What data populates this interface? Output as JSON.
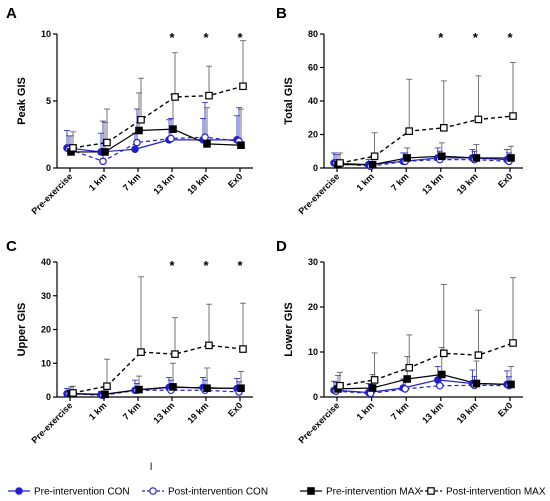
{
  "chart_data": [
    {
      "panel": "A",
      "type": "line",
      "ylabel": "Peak GIS",
      "ylim": [
        0,
        10
      ],
      "yticks": [
        0,
        5,
        10
      ],
      "categories": [
        "Pre-exercise",
        "1 km",
        "7 km",
        "13 km",
        "19 km",
        "Ex0"
      ],
      "significance": [
        "",
        "",
        "",
        "*",
        "*",
        "*"
      ],
      "series": [
        {
          "name": "Pre-intervention CON",
          "values": [
            1.5,
            1.2,
            1.4,
            2.1,
            2.1,
            2.1
          ],
          "err_upper": [
            1.3,
            1.4,
            1.2,
            1.5,
            1.6,
            1.8
          ]
        },
        {
          "name": "Post-intervention CON",
          "values": [
            1.4,
            0.5,
            1.9,
            2.2,
            2.3,
            2.0
          ],
          "err_upper": [
            1.0,
            3.0,
            2.5,
            1.5,
            2.6,
            2.5
          ]
        },
        {
          "name": "Pre-intervention MAX",
          "values": [
            1.2,
            1.2,
            2.8,
            2.9,
            1.8,
            1.7
          ],
          "err_upper": [
            1.2,
            2.2,
            2.8,
            2.6,
            2.7,
            2.7
          ]
        },
        {
          "name": "Post-intervention MAX",
          "values": [
            1.5,
            1.9,
            3.6,
            5.3,
            5.4,
            6.1
          ],
          "err_upper": [
            1.2,
            2.5,
            3.1,
            3.3,
            2.2,
            3.4
          ]
        }
      ]
    },
    {
      "panel": "B",
      "type": "line",
      "ylabel": "Total GIS",
      "ylim": [
        0,
        80
      ],
      "yticks": [
        0,
        20,
        40,
        60,
        80
      ],
      "categories": [
        "Pre-exercise",
        "1 km",
        "7 km",
        "13 km",
        "19 km",
        "Ex0"
      ],
      "significance": [
        "",
        "",
        "",
        "*",
        "*",
        "*"
      ],
      "series": [
        {
          "name": "Pre-intervention CON",
          "values": [
            3,
            2,
            4,
            6,
            6,
            5
          ],
          "err_upper": [
            6,
            3,
            5,
            6,
            5,
            6
          ]
        },
        {
          "name": "Post-intervention CON",
          "values": [
            3,
            1,
            4,
            5,
            5,
            4
          ],
          "err_upper": [
            5,
            2,
            5,
            5,
            5,
            5
          ]
        },
        {
          "name": "Pre-intervention MAX",
          "values": [
            2,
            2,
            6,
            7,
            6,
            6
          ],
          "err_upper": [
            6,
            5,
            6,
            8,
            8,
            7
          ]
        },
        {
          "name": "Post-intervention MAX",
          "values": [
            3,
            7,
            22,
            24,
            29,
            31
          ],
          "err_upper": [
            6,
            14,
            31,
            28,
            26,
            32
          ]
        }
      ]
    },
    {
      "panel": "C",
      "type": "line",
      "ylabel": "Upper GIS",
      "ylim": [
        0,
        40
      ],
      "yticks": [
        0,
        10,
        20,
        30,
        40
      ],
      "categories": [
        "Pre-exercise",
        "1 km",
        "7 km",
        "13 km",
        "19 km",
        "Ex0"
      ],
      "significance": [
        "",
        "",
        "",
        "*",
        "*",
        "*"
      ],
      "series": [
        {
          "name": "Pre-intervention CON",
          "values": [
            1,
            0.7,
            2,
            2.8,
            2.8,
            2.5
          ],
          "err_upper": [
            1.5,
            1,
            3,
            3,
            3,
            3
          ]
        },
        {
          "name": "Post-intervention CON",
          "values": [
            1,
            0.5,
            2,
            2,
            2,
            1.5
          ],
          "err_upper": [
            1,
            1,
            2,
            3,
            3,
            3
          ]
        },
        {
          "name": "Pre-intervention MAX",
          "values": [
            1,
            0.8,
            2.2,
            3,
            2.6,
            2.6
          ],
          "err_upper": [
            2,
            2,
            4,
            7,
            6,
            5
          ]
        },
        {
          "name": "Post-intervention MAX",
          "values": [
            1.2,
            3.2,
            13.3,
            12.7,
            15.3,
            14.2
          ],
          "err_upper": [
            2,
            8,
            22.3,
            10.8,
            12.2,
            13.6
          ]
        }
      ]
    },
    {
      "panel": "D",
      "type": "line",
      "ylabel": "Lower GIS",
      "ylim": [
        0,
        30
      ],
      "yticks": [
        0,
        10,
        20,
        30
      ],
      "categories": [
        "Pre-exercise",
        "1 km",
        "7 km",
        "13 km",
        "19 km",
        "Ex0"
      ],
      "significance": [
        "",
        "",
        "",
        "",
        "",
        ""
      ],
      "series": [
        {
          "name": "Pre-intervention CON",
          "values": [
            1.5,
            1.0,
            2.0,
            3.8,
            3.0,
            2.8
          ],
          "err_upper": [
            2,
            2,
            2,
            3,
            3,
            3
          ]
        },
        {
          "name": "Post-intervention CON",
          "values": [
            1.3,
            0.8,
            1.8,
            2.5,
            2.6,
            2.5
          ],
          "err_upper": [
            2,
            2,
            2,
            2,
            2,
            2
          ]
        },
        {
          "name": "Pre-intervention MAX",
          "values": [
            1.8,
            2.0,
            4.0,
            5.0,
            3.0,
            2.8
          ],
          "err_upper": [
            3,
            3,
            5,
            6,
            5,
            4
          ]
        },
        {
          "name": "Post-intervention MAX",
          "values": [
            2.5,
            3.8,
            6.5,
            9.7,
            9.3,
            12.0
          ],
          "err_upper": [
            3,
            6,
            7.3,
            15.3,
            10,
            14.5
          ]
        }
      ]
    }
  ],
  "legend": [
    {
      "label": "Pre-intervention CON",
      "color": "#2020d0",
      "marker": "circle-filled",
      "line": "solid"
    },
    {
      "label": "Post-intervention CON",
      "color": "#2020d0",
      "marker": "circle-open",
      "line": "dashed"
    },
    {
      "label": "Pre-intervention MAX",
      "color": "#000000",
      "marker": "square-filled",
      "line": "solid"
    },
    {
      "label": "Post-intervention MAX",
      "color": "#000000",
      "marker": "square-open",
      "line": "dashed"
    }
  ],
  "stray_mark": "l"
}
